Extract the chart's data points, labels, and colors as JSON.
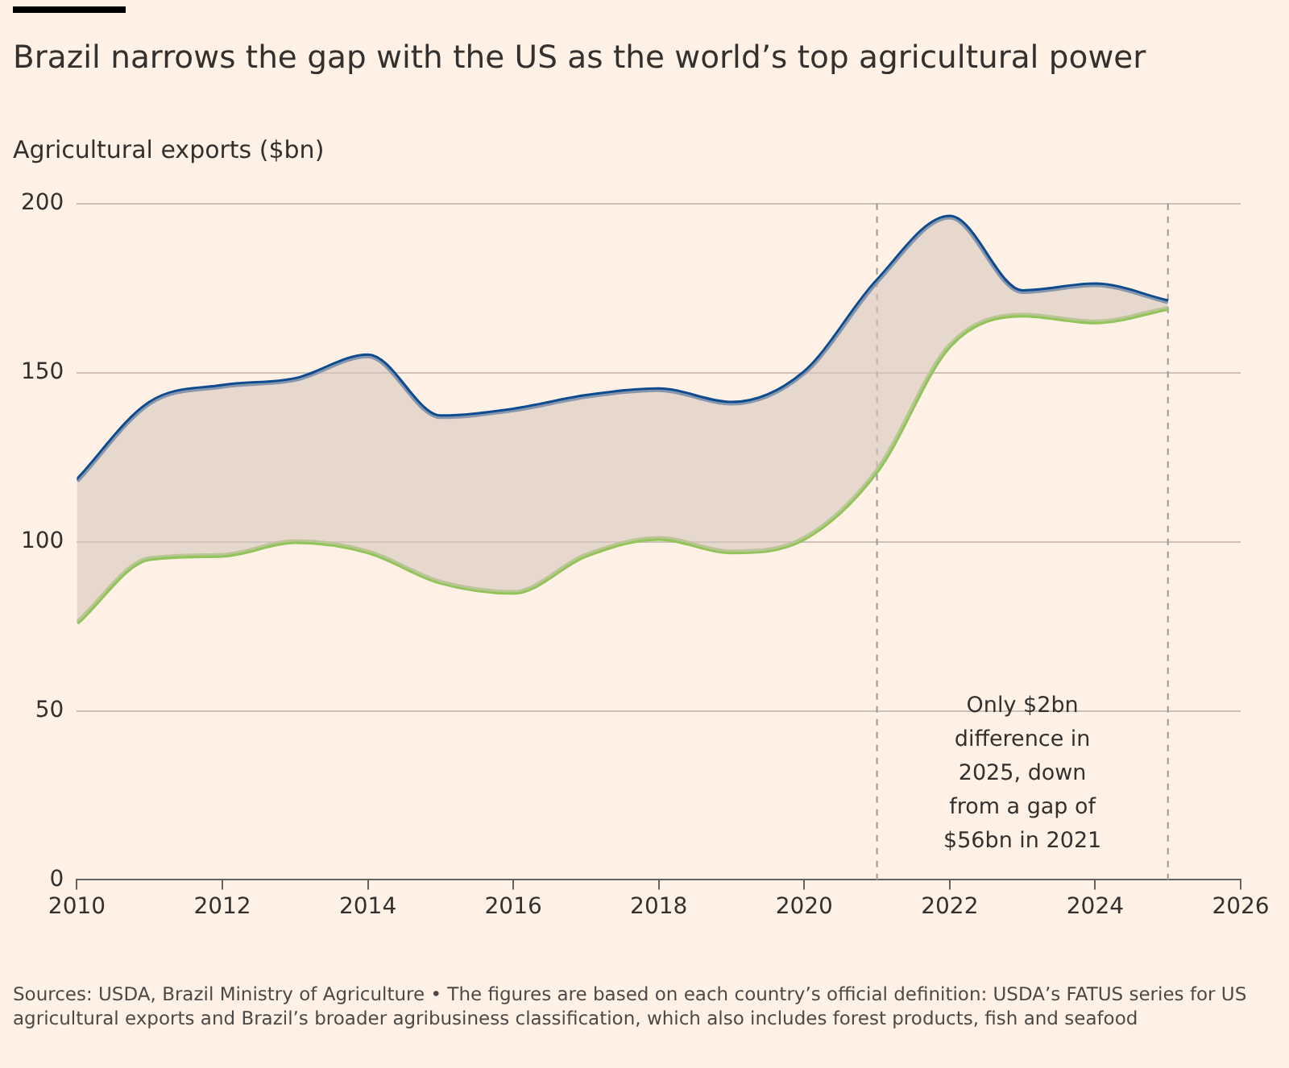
{
  "chart_data": {
    "type": "line",
    "title": "Brazil narrows the gap with the US as the world’s top agricultural power",
    "ylabel": "Agricultural exports ($bn)",
    "x": [
      2010,
      2011,
      2012,
      2013,
      2014,
      2015,
      2016,
      2017,
      2018,
      2019,
      2020,
      2021,
      2022,
      2023,
      2024,
      2025
    ],
    "series": [
      {
        "color": "#0d4b91",
        "values": [
          118,
          141,
          146,
          148,
          155,
          137,
          139,
          143,
          145,
          141,
          150,
          177,
          196,
          174,
          176,
          171
        ],
        "lower": [
          76,
          95,
          96,
          100,
          97,
          88,
          85,
          96,
          101,
          97,
          101,
          121,
          158,
          167,
          165,
          169
        ],
        "upper": [
          118,
          141,
          146,
          148,
          155,
          137,
          139,
          143,
          145,
          141,
          150,
          177,
          196,
          174,
          176,
          171
        ]
      },
      {
        "color": "#92c45a",
        "values": [
          76,
          95,
          96,
          100,
          97,
          88,
          85,
          96,
          101,
          97,
          101,
          121,
          158,
          167,
          165,
          169
        ]
      }
    ],
    "xlim": [
      2010,
      2026
    ],
    "xticks": [
      2010,
      2012,
      2014,
      2016,
      2018,
      2020,
      2022,
      2024,
      2026
    ],
    "ylim": [
      0,
      200
    ],
    "yticks": [
      0,
      50,
      100,
      150,
      200
    ],
    "grid": "y",
    "legend": false,
    "marker": "none",
    "line_style": "solid",
    "ref_lines": [
      {
        "axis": "x",
        "value": 2021,
        "color": "#999999",
        "line_style": "dashed"
      },
      {
        "axis": "x",
        "value": 2025,
        "color": "#999999",
        "line_style": "dashed"
      }
    ],
    "annotations": [
      "Only $2bn difference in 2025, down from a gap of $56bn in 2021",
      "Sources: USDA, Brazil Ministry of Agriculture • The figures are based on each country’s official definition: USDA’s FATUS series for US agricultural exports and Brazil’s broader agribusiness classification, which also includes forest products, fish and seafood"
    ]
  }
}
